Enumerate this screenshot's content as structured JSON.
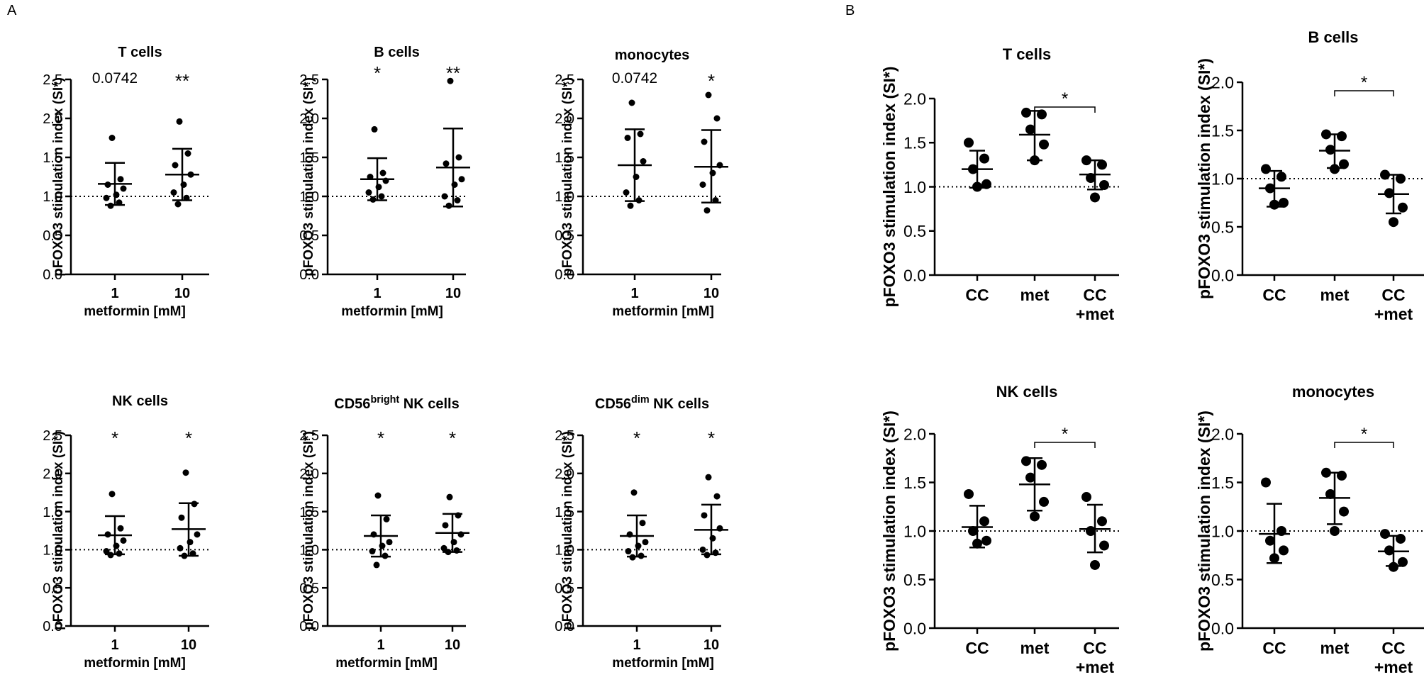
{
  "panels": [
    {
      "id": "A",
      "label": "A"
    },
    {
      "id": "B",
      "label": "B"
    }
  ],
  "chart_data": [
    {
      "panel": "A",
      "type": "scatter",
      "title": "T cells",
      "title_sup": "",
      "title_post": "",
      "ylabel": "pFOXO3 stimulation index (SI*)",
      "xlabel": "metformin  [mM]",
      "ylim": [
        0,
        2.5
      ],
      "yticks": [
        "0.0",
        "0.5",
        "1.0",
        "1.5",
        "2.0",
        "2.5"
      ],
      "baseline": 1.0,
      "categories": [
        {
          "label": "1",
          "label2": ""
        },
        {
          "label": "10",
          "label2": ""
        }
      ],
      "annotations": [
        "0.0742",
        "**"
      ],
      "groups": [
        {
          "mean": 1.16,
          "sd_low": 0.89,
          "sd_high": 1.43,
          "points": [
            1.75,
            1.22,
            1.15,
            1.1,
            1.02,
            0.98,
            0.92,
            0.88
          ]
        },
        {
          "mean": 1.28,
          "sd_low": 0.95,
          "sd_high": 1.61,
          "points": [
            1.96,
            1.55,
            1.4,
            1.28,
            1.15,
            1.05,
            0.98,
            0.9
          ]
        }
      ],
      "brackets": []
    },
    {
      "panel": "A",
      "type": "scatter",
      "title": "B cells",
      "title_sup": "",
      "title_post": "",
      "ylabel": "pFOXO3 stimulation index (SI*)",
      "xlabel": "metformin  [mM]",
      "ylim": [
        0,
        2.5
      ],
      "yticks": [
        "0.0",
        "0.5",
        "1.0",
        "1.5",
        "2.0",
        "2.5"
      ],
      "baseline": 1.0,
      "categories": [
        {
          "label": "1",
          "label2": ""
        },
        {
          "label": "10",
          "label2": ""
        }
      ],
      "annotations": [
        "*",
        "**"
      ],
      "groups": [
        {
          "mean": 1.22,
          "sd_low": 0.95,
          "sd_high": 1.49,
          "points": [
            1.86,
            1.3,
            1.25,
            1.2,
            1.12,
            1.05,
            1.0,
            0.96
          ]
        },
        {
          "mean": 1.37,
          "sd_low": 0.87,
          "sd_high": 1.87,
          "points": [
            2.48,
            1.5,
            1.42,
            1.22,
            1.15,
            1.0,
            0.95,
            0.88
          ]
        }
      ],
      "brackets": []
    },
    {
      "panel": "A",
      "type": "scatter",
      "title": "monocytes",
      "title_sup": "",
      "title_post": "",
      "ylabel": "pFOXO3 stimulation index (SI*)",
      "xlabel": "metformin [mM]",
      "ylim": [
        0,
        2.5
      ],
      "yticks": [
        "0.0",
        "0.5",
        "1.0",
        "1.5",
        "2.0",
        "2.5"
      ],
      "baseline": 1.0,
      "categories": [
        {
          "label": "1",
          "label2": ""
        },
        {
          "label": "10",
          "label2": ""
        }
      ],
      "annotations": [
        "0.0742",
        "*"
      ],
      "groups": [
        {
          "mean": 1.4,
          "sd_low": 0.94,
          "sd_high": 1.86,
          "points": [
            2.2,
            1.8,
            1.75,
            1.45,
            1.25,
            1.05,
            0.95,
            0.88
          ]
        },
        {
          "mean": 1.38,
          "sd_low": 0.92,
          "sd_high": 1.85,
          "points": [
            2.3,
            2.0,
            1.7,
            1.4,
            1.3,
            1.15,
            0.95,
            0.82
          ]
        }
      ],
      "brackets": []
    },
    {
      "panel": "A",
      "type": "scatter",
      "title": "NK cells",
      "title_sup": "",
      "title_post": "",
      "ylabel": "pFOXO3 stimulation index (SI*)",
      "xlabel": "metformin [mM]",
      "ylim": [
        0,
        2.5
      ],
      "yticks": [
        "0.0",
        "0.5",
        "1.0",
        "1.5",
        "2.0",
        "2.5"
      ],
      "baseline": 1.0,
      "categories": [
        {
          "label": "1",
          "label2": ""
        },
        {
          "label": "10",
          "label2": ""
        }
      ],
      "annotations": [
        "*",
        "*"
      ],
      "groups": [
        {
          "mean": 1.19,
          "sd_low": 0.94,
          "sd_high": 1.44,
          "points": [
            1.73,
            1.28,
            1.2,
            1.12,
            1.05,
            0.98,
            0.95,
            0.93
          ]
        },
        {
          "mean": 1.27,
          "sd_low": 0.92,
          "sd_high": 1.61,
          "points": [
            2.01,
            1.6,
            1.42,
            1.2,
            1.1,
            1.02,
            0.95,
            0.92
          ]
        }
      ],
      "brackets": []
    },
    {
      "panel": "A",
      "type": "scatter",
      "title": "CD56",
      "title_sup": "bright",
      "title_post": " NK cells",
      "ylabel": "pFOXO3 stimulation index (SI*)",
      "xlabel": "metformin [mM]",
      "ylim": [
        0,
        2.5
      ],
      "yticks": [
        "0.0",
        "0.5",
        "1.0",
        "1.5",
        "2.0",
        "2.5"
      ],
      "baseline": 1.0,
      "categories": [
        {
          "label": "1",
          "label2": ""
        },
        {
          "label": "10",
          "label2": ""
        }
      ],
      "annotations": [
        "*",
        "*"
      ],
      "groups": [
        {
          "mean": 1.18,
          "sd_low": 0.91,
          "sd_high": 1.45,
          "points": [
            1.71,
            1.4,
            1.2,
            1.1,
            1.05,
            0.98,
            0.92,
            0.8
          ]
        },
        {
          "mean": 1.22,
          "sd_low": 0.97,
          "sd_high": 1.47,
          "points": [
            1.69,
            1.45,
            1.32,
            1.2,
            1.1,
            1.02,
            0.99,
            0.97
          ]
        }
      ],
      "brackets": []
    },
    {
      "panel": "A",
      "type": "scatter",
      "title": "CD56",
      "title_sup": "dim",
      "title_post": " NK cells",
      "ylabel": "pFOXO3 stimulation index (SI*)",
      "xlabel": "metformin [mM]",
      "ylim": [
        0,
        2.5
      ],
      "yticks": [
        "0.0",
        "0.5",
        "1.0",
        "1.5",
        "2.0",
        "2.5"
      ],
      "baseline": 1.0,
      "categories": [
        {
          "label": "1",
          "label2": ""
        },
        {
          "label": "10",
          "label2": ""
        }
      ],
      "annotations": [
        "*",
        "*"
      ],
      "groups": [
        {
          "mean": 1.18,
          "sd_low": 0.91,
          "sd_high": 1.45,
          "points": [
            1.75,
            1.35,
            1.2,
            1.1,
            1.05,
            0.98,
            0.92,
            0.9
          ]
        },
        {
          "mean": 1.26,
          "sd_low": 0.94,
          "sd_high": 1.59,
          "points": [
            1.95,
            1.7,
            1.45,
            1.28,
            1.15,
            1.0,
            0.96,
            0.93
          ]
        }
      ],
      "brackets": []
    },
    {
      "panel": "B",
      "type": "scatter",
      "title": "T cells",
      "title_sup": "",
      "title_post": "",
      "ylabel": "pFOXO3 stimulation index (SI*)",
      "xlabel": "",
      "ylim": [
        0,
        2.0
      ],
      "yticks": [
        "0.0",
        "0.5",
        "1.0",
        "1.5",
        "2.0"
      ],
      "baseline": 1.0,
      "categories": [
        {
          "label": "CC",
          "label2": ""
        },
        {
          "label": "met",
          "label2": ""
        },
        {
          "label": "CC",
          "label2": "+met"
        }
      ],
      "annotations": [
        "",
        "",
        ""
      ],
      "groups": [
        {
          "mean": 1.2,
          "sd_low": 0.99,
          "sd_high": 1.41,
          "points": [
            1.5,
            1.32,
            1.2,
            1.03,
            1.0
          ]
        },
        {
          "mean": 1.59,
          "sd_low": 1.3,
          "sd_high": 1.86,
          "points": [
            1.84,
            1.82,
            1.65,
            1.48,
            1.3
          ]
        },
        {
          "mean": 1.14,
          "sd_low": 0.97,
          "sd_high": 1.3,
          "points": [
            1.3,
            1.25,
            1.1,
            1.02,
            0.88
          ]
        }
      ],
      "brackets": [
        {
          "from": 1,
          "to": 2,
          "label": "*"
        }
      ]
    },
    {
      "panel": "B",
      "type": "scatter",
      "title": "B cells",
      "title_sup": "",
      "title_post": "",
      "ylabel": "pFOXO3 stimulation index (SI*)",
      "xlabel": "",
      "ylim": [
        0,
        2.0
      ],
      "yticks": [
        "0.0",
        "0.5",
        "1.0",
        "1.5",
        "2.0"
      ],
      "baseline": 1.0,
      "categories": [
        {
          "label": "CC",
          "label2": ""
        },
        {
          "label": "met",
          "label2": ""
        },
        {
          "label": "CC",
          "label2": "+met"
        }
      ],
      "annotations": [
        "",
        "",
        ""
      ],
      "groups": [
        {
          "mean": 0.9,
          "sd_low": 0.71,
          "sd_high": 1.08,
          "points": [
            1.1,
            1.02,
            0.9,
            0.75,
            0.73
          ]
        },
        {
          "mean": 1.29,
          "sd_low": 1.11,
          "sd_high": 1.46,
          "points": [
            1.46,
            1.44,
            1.3,
            1.15,
            1.1
          ]
        },
        {
          "mean": 0.84,
          "sd_low": 0.64,
          "sd_high": 1.04,
          "points": [
            1.04,
            1.0,
            0.85,
            0.7,
            0.55
          ]
        }
      ],
      "brackets": [
        {
          "from": 1,
          "to": 2,
          "label": "*"
        }
      ]
    },
    {
      "panel": "B",
      "type": "scatter",
      "title": "NK cells",
      "title_sup": "",
      "title_post": "",
      "ylabel": "pFOXO3 stimulation index (SI*)",
      "xlabel": "",
      "ylim": [
        0,
        2.0
      ],
      "yticks": [
        "0.0",
        "0.5",
        "1.0",
        "1.5",
        "2.0"
      ],
      "baseline": 1.0,
      "categories": [
        {
          "label": "CC",
          "label2": ""
        },
        {
          "label": "met",
          "label2": ""
        },
        {
          "label": "CC",
          "label2": "+met"
        }
      ],
      "annotations": [
        "",
        "",
        ""
      ],
      "groups": [
        {
          "mean": 1.04,
          "sd_low": 0.83,
          "sd_high": 1.26,
          "points": [
            1.38,
            1.1,
            1.0,
            0.9,
            0.87
          ]
        },
        {
          "mean": 1.48,
          "sd_low": 1.21,
          "sd_high": 1.75,
          "points": [
            1.72,
            1.68,
            1.55,
            1.3,
            1.15
          ]
        },
        {
          "mean": 1.02,
          "sd_low": 0.78,
          "sd_high": 1.27,
          "points": [
            1.35,
            1.1,
            1.0,
            0.85,
            0.65
          ]
        }
      ],
      "brackets": [
        {
          "from": 1,
          "to": 2,
          "label": "*"
        }
      ]
    },
    {
      "panel": "B",
      "type": "scatter",
      "title": "monocytes",
      "title_sup": "",
      "title_post": "",
      "ylabel": "pFOXO3 stimulation index (SI*)",
      "xlabel": "",
      "ylim": [
        0,
        2.0
      ],
      "yticks": [
        "0.0",
        "0.5",
        "1.0",
        "1.5",
        "2.0"
      ],
      "baseline": 1.0,
      "categories": [
        {
          "label": "CC",
          "label2": ""
        },
        {
          "label": "met",
          "label2": ""
        },
        {
          "label": "CC",
          "label2": "+met"
        }
      ],
      "annotations": [
        "",
        "",
        ""
      ],
      "groups": [
        {
          "mean": 0.97,
          "sd_low": 0.67,
          "sd_high": 1.28,
          "points": [
            1.5,
            1.0,
            0.9,
            0.8,
            0.72
          ]
        },
        {
          "mean": 1.34,
          "sd_low": 1.07,
          "sd_high": 1.6,
          "points": [
            1.6,
            1.57,
            1.38,
            1.2,
            1.0
          ]
        },
        {
          "mean": 0.79,
          "sd_low": 0.64,
          "sd_high": 0.95,
          "points": [
            0.97,
            0.92,
            0.8,
            0.68,
            0.63
          ]
        }
      ],
      "brackets": [
        {
          "from": 1,
          "to": 2,
          "label": "*"
        }
      ]
    }
  ]
}
